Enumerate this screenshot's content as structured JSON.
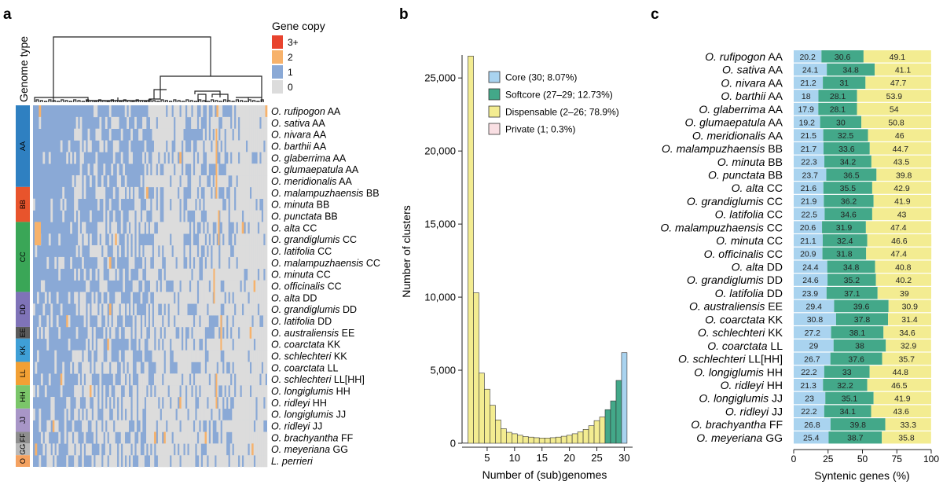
{
  "panels": {
    "a": "a",
    "b": "b",
    "c": "c"
  },
  "heatmap": {
    "legend_title": "Gene copy",
    "legend_items": [
      {
        "label": "3+",
        "color": "#e8432e"
      },
      {
        "label": "2",
        "color": "#f7b26b"
      },
      {
        "label": "1",
        "color": "#8aa9d6"
      },
      {
        "label": "0",
        "color": "#dcdcdc"
      }
    ],
    "genome_type_label": "Genome type",
    "genome_types": [
      {
        "label": "AA",
        "rows": 7,
        "color": "#2f80c1"
      },
      {
        "label": "BB",
        "rows": 3,
        "color": "#e8542c"
      },
      {
        "label": "CC",
        "rows": 6,
        "color": "#3aa657"
      },
      {
        "label": "DD",
        "rows": 3,
        "color": "#7f73b8"
      },
      {
        "label": "EE",
        "rows": 1,
        "color": "#5b5b5b"
      },
      {
        "label": "KK",
        "rows": 2,
        "color": "#3f9fd6"
      },
      {
        "label": "LL",
        "rows": 2,
        "color": "#f2a034"
      },
      {
        "label": "HH",
        "rows": 2,
        "color": "#7bc66a"
      },
      {
        "label": "JJ",
        "rows": 2,
        "color": "#a896c7"
      },
      {
        "label": "FF",
        "rows": 1,
        "color": "#8e8e8e"
      },
      {
        "label": "GG",
        "rows": 1,
        "color": "#b9b9b9"
      },
      {
        "label": "O",
        "rows": 1,
        "color": "#f4a261"
      }
    ],
    "rows": [
      {
        "sp": "O. rufipogon",
        "g": "AA"
      },
      {
        "sp": "O. sativa",
        "g": "AA"
      },
      {
        "sp": "O. nivara",
        "g": "AA"
      },
      {
        "sp": "O. barthii",
        "g": "AA"
      },
      {
        "sp": "O. glaberrima",
        "g": "AA"
      },
      {
        "sp": "O. glumaepatula",
        "g": "AA"
      },
      {
        "sp": "O. meridionalis",
        "g": "AA"
      },
      {
        "sp": "O. malampuzhaensis",
        "g": "BB"
      },
      {
        "sp": "O. minuta",
        "g": "BB"
      },
      {
        "sp": "O. punctata",
        "g": "BB"
      },
      {
        "sp": "O. alta",
        "g": "CC"
      },
      {
        "sp": "O. grandiglumis",
        "g": "CC"
      },
      {
        "sp": "O. latifolia",
        "g": "CC"
      },
      {
        "sp": "O. malampuzhaensis",
        "g": "CC"
      },
      {
        "sp": "O. minuta",
        "g": "CC"
      },
      {
        "sp": "O. officinalis",
        "g": "CC"
      },
      {
        "sp": "O. alta",
        "g": "DD"
      },
      {
        "sp": "O. grandiglumis",
        "g": "DD"
      },
      {
        "sp": "O. latifolia",
        "g": "DD"
      },
      {
        "sp": "O. australiensis",
        "g": "EE"
      },
      {
        "sp": "O. coarctata",
        "g": "KK"
      },
      {
        "sp": "O. schlechteri",
        "g": "KK"
      },
      {
        "sp": "O. coarctata",
        "g": "LL"
      },
      {
        "sp": "O. schlechteri",
        "g": "LL[HH]"
      },
      {
        "sp": "O. longiglumis",
        "g": "HH"
      },
      {
        "sp": "O. ridleyi",
        "g": "HH"
      },
      {
        "sp": "O. longiglumis",
        "g": "JJ"
      },
      {
        "sp": "O. ridleyi",
        "g": "JJ"
      },
      {
        "sp": "O. brachyantha",
        "g": "FF"
      },
      {
        "sp": "O. meyeriana",
        "g": "GG"
      },
      {
        "sp": "L. perrieri",
        "g": ""
      }
    ]
  },
  "chart_data": [
    {
      "type": "bar",
      "panel": "b",
      "xlabel": "Number of (sub)genomes",
      "ylabel": "Number of clusters",
      "xticks": [
        5,
        10,
        15,
        20,
        25,
        30
      ],
      "yticks": [
        0,
        5000,
        10000,
        15000,
        20000,
        25000
      ],
      "ytick_labels": [
        "0",
        "5,000",
        "10,000",
        "15,000",
        "20,000",
        "25,000"
      ],
      "ylim": [
        0,
        27000
      ],
      "x": [
        1,
        2,
        3,
        4,
        5,
        6,
        7,
        8,
        9,
        10,
        11,
        12,
        13,
        14,
        15,
        16,
        17,
        18,
        19,
        20,
        21,
        22,
        23,
        24,
        25,
        26,
        27,
        28,
        29,
        30
      ],
      "values": [
        22,
        26500,
        10300,
        4800,
        3700,
        2600,
        1600,
        1000,
        750,
        650,
        550,
        460,
        420,
        380,
        360,
        360,
        380,
        420,
        480,
        550,
        650,
        780,
        950,
        1200,
        1550,
        1800,
        2300,
        2900,
        4300,
        6200
      ],
      "categories_by_x": [
        "Private",
        "Dispensable",
        "Dispensable",
        "Dispensable",
        "Dispensable",
        "Dispensable",
        "Dispensable",
        "Dispensable",
        "Dispensable",
        "Dispensable",
        "Dispensable",
        "Dispensable",
        "Dispensable",
        "Dispensable",
        "Dispensable",
        "Dispensable",
        "Dispensable",
        "Dispensable",
        "Dispensable",
        "Dispensable",
        "Dispensable",
        "Dispensable",
        "Dispensable",
        "Dispensable",
        "Dispensable",
        "Dispensable",
        "Softcore",
        "Softcore",
        "Softcore",
        "Core"
      ],
      "legend": [
        {
          "key": "Core",
          "label": "Core (30; 8.07%)",
          "color": "#a9d3ef"
        },
        {
          "key": "Softcore",
          "label": "Softcore (27–29; 12.73%)",
          "color": "#43a889"
        },
        {
          "key": "Dispensable",
          "label": "Dispensable (2–26; 78.9%)",
          "color": "#f3ec91"
        },
        {
          "key": "Private",
          "label": "Private (1; 0.3%)",
          "color": "#f9dfe3"
        }
      ]
    },
    {
      "type": "bar",
      "stacked": true,
      "orientation": "horizontal",
      "panel": "c",
      "xlabel": "Syntenic genes (%)",
      "xlim": [
        0,
        100
      ],
      "xticks": [
        0,
        25,
        50,
        75,
        100
      ],
      "series_colors": [
        "#a9d3ef",
        "#43a889",
        "#f3ec91"
      ],
      "categories": [
        {
          "sp": "O. rufipogon",
          "g": "AA"
        },
        {
          "sp": "O. sativa",
          "g": "AA"
        },
        {
          "sp": "O. nivara",
          "g": "AA"
        },
        {
          "sp": "O. barthii",
          "g": "AA"
        },
        {
          "sp": "O. glaberrima",
          "g": "AA"
        },
        {
          "sp": "O. glumaepatula",
          "g": "AA"
        },
        {
          "sp": "O. meridionalis",
          "g": "AA"
        },
        {
          "sp": "O. malampuzhaensis",
          "g": "BB"
        },
        {
          "sp": "O. minuta",
          "g": "BB"
        },
        {
          "sp": "O. punctata",
          "g": "BB"
        },
        {
          "sp": "O. alta",
          "g": "CC"
        },
        {
          "sp": "O. grandiglumis",
          "g": "CC"
        },
        {
          "sp": "O. latifolia",
          "g": "CC"
        },
        {
          "sp": "O. malampuzhaensis",
          "g": "CC"
        },
        {
          "sp": "O. minuta",
          "g": "CC"
        },
        {
          "sp": "O. officinalis",
          "g": "CC"
        },
        {
          "sp": "O. alta",
          "g": "DD"
        },
        {
          "sp": "O. grandiglumis",
          "g": "DD"
        },
        {
          "sp": "O. latifolia",
          "g": "DD"
        },
        {
          "sp": "O. australiensis",
          "g": "EE"
        },
        {
          "sp": "O. coarctata",
          "g": "KK"
        },
        {
          "sp": "O. schlechteri",
          "g": "KK"
        },
        {
          "sp": "O. coarctata",
          "g": "LL"
        },
        {
          "sp": "O. schlechteri",
          "g": "LL[HH]"
        },
        {
          "sp": "O. longiglumis",
          "g": "HH"
        },
        {
          "sp": "O. ridleyi",
          "g": "HH"
        },
        {
          "sp": "O. longiglumis",
          "g": "JJ"
        },
        {
          "sp": "O. ridleyi",
          "g": "JJ"
        },
        {
          "sp": "O. brachyantha",
          "g": "FF"
        },
        {
          "sp": "O. meyeriana",
          "g": "GG"
        }
      ],
      "values": [
        [
          20.2,
          30.6,
          49.1
        ],
        [
          24.1,
          34.8,
          41.1
        ],
        [
          21.2,
          31,
          47.7
        ],
        [
          18,
          28.1,
          53.9
        ],
        [
          17.9,
          28.1,
          54
        ],
        [
          19.2,
          30,
          50.8
        ],
        [
          21.5,
          32.5,
          46
        ],
        [
          21.7,
          33.6,
          44.7
        ],
        [
          22.3,
          34.2,
          43.5
        ],
        [
          23.7,
          36.5,
          39.8
        ],
        [
          21.6,
          35.5,
          42.9
        ],
        [
          21.9,
          36.2,
          41.9
        ],
        [
          22.5,
          34.6,
          43
        ],
        [
          20.6,
          31.9,
          47.4
        ],
        [
          21.1,
          32.4,
          46.6
        ],
        [
          20.9,
          31.8,
          47.4
        ],
        [
          24.4,
          34.8,
          40.8
        ],
        [
          24.6,
          35.2,
          40.2
        ],
        [
          23.9,
          37.1,
          39
        ],
        [
          29.4,
          39.6,
          30.9
        ],
        [
          30.8,
          37.8,
          31.4
        ],
        [
          27.2,
          38.1,
          34.6
        ],
        [
          29,
          38,
          32.9
        ],
        [
          26.7,
          37.6,
          35.7
        ],
        [
          22.2,
          33,
          44.8
        ],
        [
          21.3,
          32.2,
          46.5
        ],
        [
          23,
          35.1,
          41.9
        ],
        [
          22.2,
          34.1,
          43.6
        ],
        [
          26.8,
          39.8,
          33.3
        ],
        [
          25.4,
          38.7,
          35.8
        ]
      ]
    }
  ]
}
